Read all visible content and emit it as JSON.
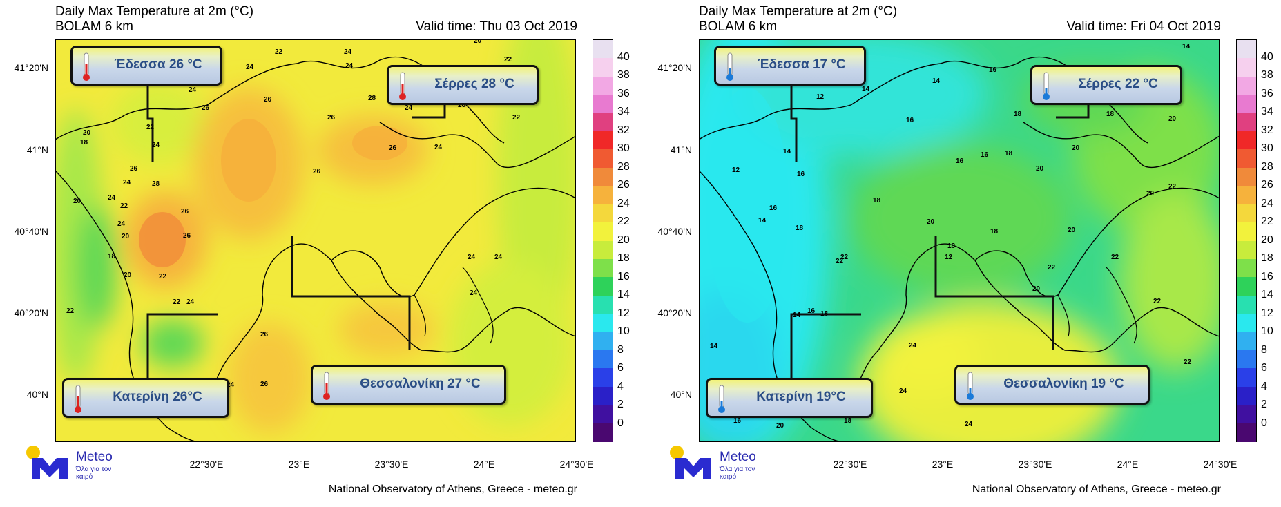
{
  "panels": [
    {
      "title": "Daily Max Temperature at 2m (°C)",
      "model": "BOLAM 6 km",
      "valid_time": "Valid time: Thu 03 Oct 2019",
      "cities": {
        "edessa": "Έδεσσα 26 °C",
        "serres": "Σέρρες 28 °C",
        "katerini": "Κατερίνη 26°C",
        "thessaloniki": "Θεσσαλονίκη 27 °C"
      },
      "contour_labels": [
        "22",
        "24",
        "24",
        "20",
        "24",
        "26",
        "26",
        "22",
        "26",
        "24",
        "28",
        "26",
        "26",
        "24",
        "26",
        "24",
        "24",
        "22",
        "24",
        "26",
        "22",
        "20",
        "24",
        "20",
        "18",
        "22",
        "26",
        "28",
        "24",
        "26",
        "24",
        "18",
        "26",
        "20",
        "22",
        "20",
        "20",
        "22",
        "22",
        "24",
        "24",
        "24",
        "24",
        "26",
        "26",
        "24",
        "22",
        "24"
      ]
    },
    {
      "title": "Daily Max Temperature at 2m (°C)",
      "model": "BOLAM 6 km",
      "valid_time": "Valid time: Fri 04 Oct 2019",
      "cities": {
        "edessa": "Έδεσσα 17 °C",
        "serres": "Σέρρες 22 °C",
        "katerini": "Κατερίνη 19°C",
        "thessaloniki": "Θεσσαλονίκη 19 °C"
      },
      "contour_labels": [
        "14",
        "16",
        "14",
        "12",
        "14",
        "16",
        "18",
        "18",
        "16",
        "14",
        "16",
        "16",
        "18",
        "20",
        "12",
        "20",
        "14",
        "18",
        "16",
        "18",
        "18",
        "20",
        "22",
        "20",
        "20",
        "18",
        "22",
        "22",
        "20",
        "22",
        "12",
        "20",
        "22",
        "14",
        "16",
        "18",
        "14",
        "24",
        "22",
        "22",
        "24",
        "20",
        "24",
        "18",
        "16",
        "20",
        "22"
      ]
    }
  ],
  "axes": {
    "y_labels": [
      "41°20'N",
      "41°N",
      "40°40'N",
      "40°20'N",
      "40°N"
    ],
    "x_labels": [
      "22°30'E",
      "23°E",
      "23°30'E",
      "24°E",
      "24°30'E"
    ]
  },
  "legend": {
    "ticks": [
      "40",
      "38",
      "36",
      "34",
      "32",
      "30",
      "28",
      "26",
      "24",
      "22",
      "20",
      "18",
      "16",
      "14",
      "12",
      "10",
      "8",
      "6",
      "4",
      "2",
      "0"
    ],
    "colors": [
      "#e8e0f0",
      "#f6d0ee",
      "#f2a8e4",
      "#e87ad0",
      "#e04080",
      "#f02828",
      "#f05a32",
      "#f08a3a",
      "#f6b23c",
      "#f4d83c",
      "#f2f23c",
      "#c8ec3c",
      "#7ee04a",
      "#2ed25a",
      "#28e0b0",
      "#2ae8ee",
      "#30b0f0",
      "#2a78f0",
      "#2a40e8",
      "#2a20c8",
      "#4010a0",
      "#4a0870"
    ]
  },
  "brand": {
    "logo_name": "Meteo",
    "logo_tagline": "Όλα για τον καιρό",
    "credit": "National Observatory of Athens, Greece - meteo.gr"
  }
}
